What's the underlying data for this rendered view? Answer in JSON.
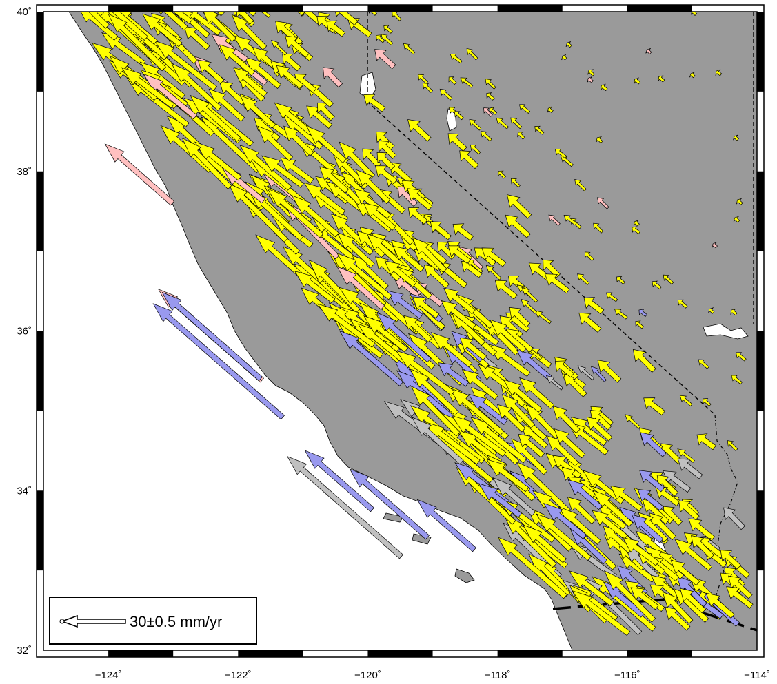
{
  "map": {
    "x_ticks": [
      {
        "value": -124,
        "label": "−124˚"
      },
      {
        "value": -122,
        "label": "−122˚"
      },
      {
        "value": -120,
        "label": "−120˚"
      },
      {
        "value": -118,
        "label": "−118˚"
      },
      {
        "value": -116,
        "label": "−116˚"
      },
      {
        "value": -114,
        "label": "−114˚"
      }
    ],
    "y_ticks": [
      {
        "value": 32,
        "label": "32˚"
      },
      {
        "value": 34,
        "label": "34˚"
      },
      {
        "value": 36,
        "label": "36˚"
      },
      {
        "value": 38,
        "label": "38˚"
      },
      {
        "value": 40,
        "label": "40˚"
      }
    ],
    "lon_range": [
      -125,
      -114
    ],
    "lat_range": [
      32,
      40
    ],
    "colors": {
      "land": "#9a9a9a",
      "ocean": "#ffffff",
      "arrow_yellow": "#ffff00",
      "arrow_blue": "#9999ee",
      "arrow_pink": "#ffc0c0",
      "arrow_gray": "#c0c0c0",
      "frame": "#000000"
    },
    "legend": {
      "label": "30±0.5 mm/yr",
      "velocity_mm_yr": 30,
      "uncertainty_mm_yr": 0.5,
      "direction": "west"
    }
  }
}
